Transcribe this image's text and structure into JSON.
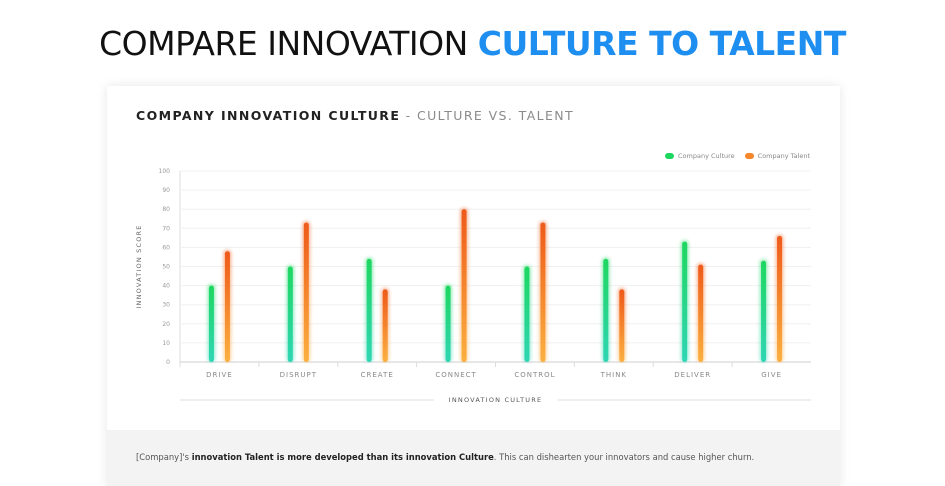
{
  "headline": {
    "part1": "COMPARE INNOVATION",
    "part2": "CULTURE TO TALENT"
  },
  "colors": {
    "accent": "#1e8ff0",
    "culture": "#1ed760",
    "talent": "#f6862a"
  },
  "chart_data": {
    "type": "bar",
    "title": "COMPANY INNOVATION CULTURE",
    "subtitle": "CULTURE VS. TALENT",
    "title_separator": "-",
    "xlabel": "INNOVATION CULTURE",
    "ylabel": "INNOVATION SCORE",
    "ylim": [
      0,
      100
    ],
    "yticks": [
      0,
      10,
      20,
      30,
      40,
      50,
      60,
      70,
      80,
      90,
      100
    ],
    "grid": true,
    "legend_position": "top-right",
    "categories": [
      "DRIVE",
      "DISRUPT",
      "CREATE",
      "CONNECT",
      "CONTROL",
      "THINK",
      "DELIVER",
      "GIVE"
    ],
    "series": [
      {
        "name": "Company Culture",
        "values": [
          40,
          50,
          54,
          40,
          50,
          54,
          63,
          53
        ]
      },
      {
        "name": "Company Talent",
        "values": [
          58,
          73,
          38,
          80,
          73,
          38,
          51,
          66
        ]
      }
    ]
  },
  "footer": {
    "prefix": "[Company]'s ",
    "bold": "innovation Talent is more developed than its innovation Culture",
    "suffix": ". This can dishearten your innovators and cause higher churn."
  }
}
